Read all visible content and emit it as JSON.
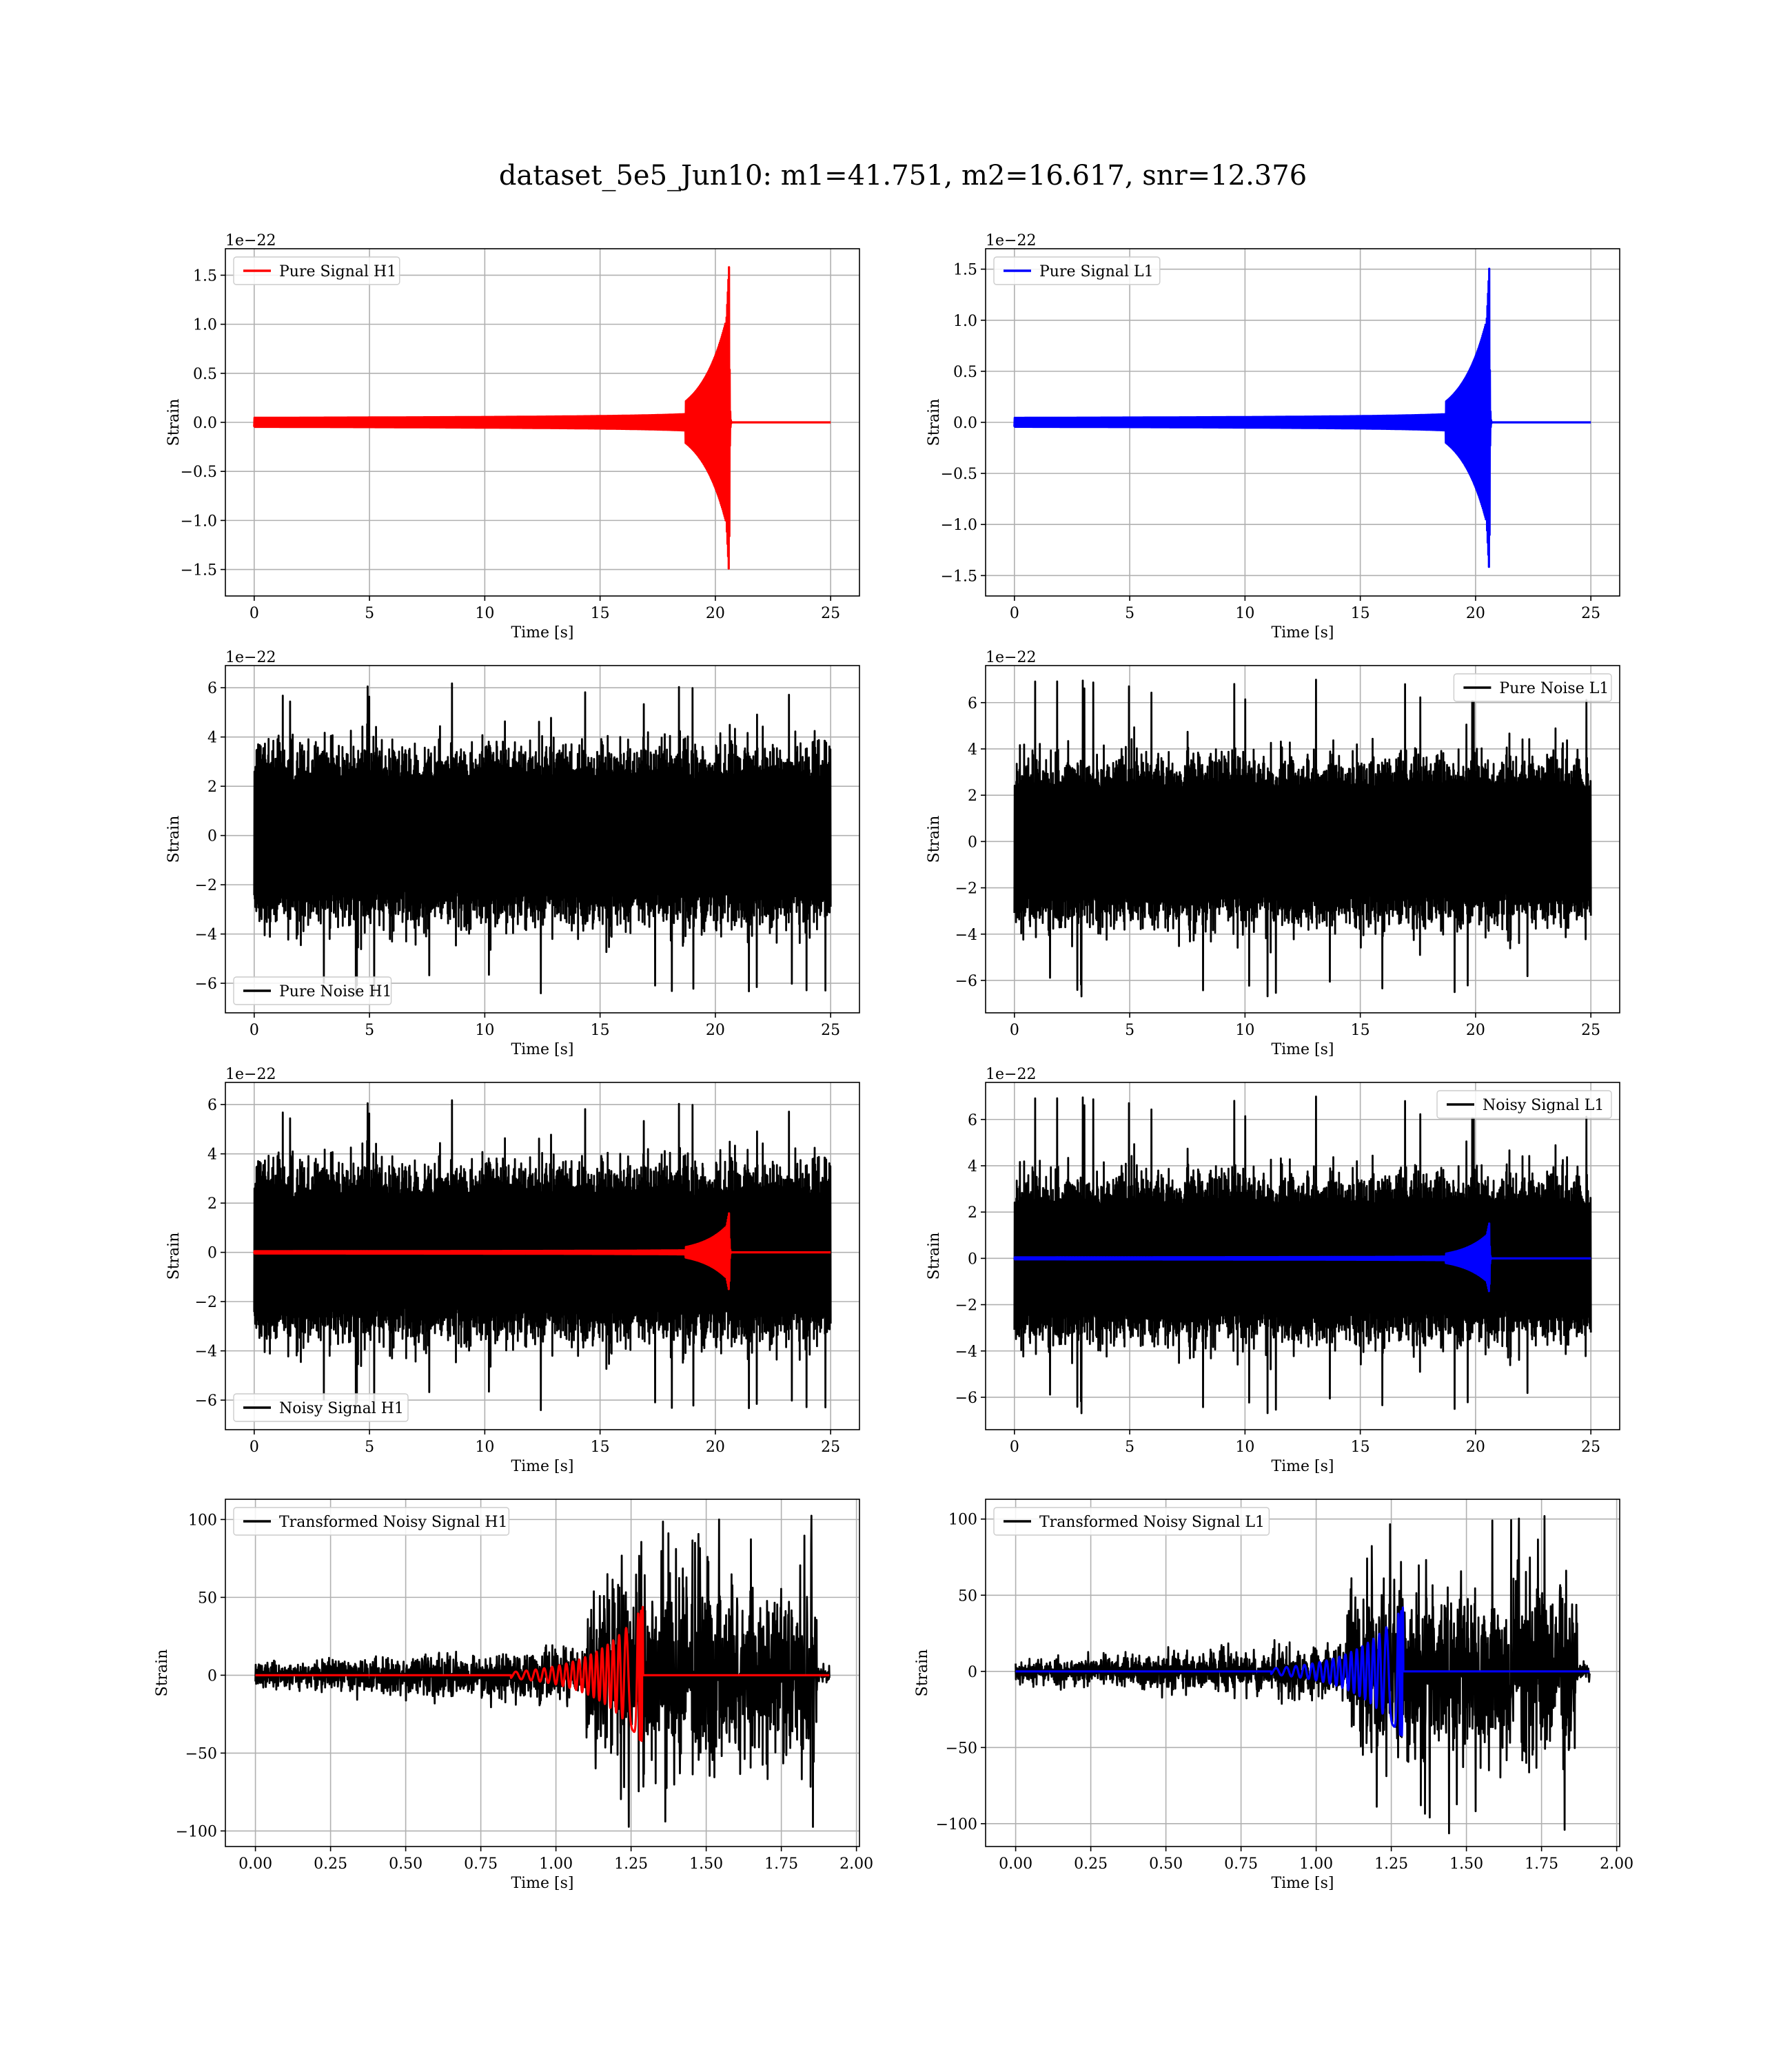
{
  "figure": {
    "title": "dataset_5e5_Jun10: m1=41.751, m2=16.617, snr=12.376"
  },
  "colors": {
    "h1_signal": "#ff0000",
    "l1_signal": "#0000ff",
    "noise": "#000000",
    "grid": "#b0b0b0"
  },
  "chart_data": [
    {
      "type": "line",
      "panel": "top-left",
      "xlabel": "Time [s]",
      "ylabel": "Strain",
      "offset_text": "1e−22",
      "xlim": [
        -1.25,
        26.25
      ],
      "ylim": [
        -1.77,
        1.77
      ],
      "xticks": [
        0,
        5,
        10,
        15,
        20,
        25
      ],
      "yticks": [
        -1.5,
        -1.0,
        -0.5,
        0.0,
        0.5,
        1.0,
        1.5
      ],
      "ytick_labels": [
        "−1.5",
        "−1.0",
        "−0.5",
        "0.0",
        "0.5",
        "1.0",
        "1.5"
      ],
      "legend_loc": "upper-left",
      "grid": true,
      "series": [
        {
          "name": "Pure Signal H1",
          "color": "#ff0000",
          "kind": "chirp",
          "x_start": 0,
          "x_end": 25,
          "merger_t": 20.6,
          "peak_pos": 1.62,
          "peak_neg": -1.59,
          "early_amp": 0.05
        }
      ]
    },
    {
      "type": "line",
      "panel": "top-right",
      "xlabel": "Time [s]",
      "ylabel": "Strain",
      "offset_text": "1e−22",
      "xlim": [
        -1.25,
        26.25
      ],
      "ylim": [
        -1.7,
        1.7
      ],
      "xticks": [
        0,
        5,
        10,
        15,
        20,
        25
      ],
      "yticks": [
        -1.5,
        -1.0,
        -0.5,
        0.0,
        0.5,
        1.0,
        1.5
      ],
      "ytick_labels": [
        "−1.5",
        "−1.0",
        "−0.5",
        "0.0",
        "0.5",
        "1.0",
        "1.5"
      ],
      "legend_loc": "upper-left",
      "grid": true,
      "series": [
        {
          "name": "Pure Signal L1",
          "color": "#0000ff",
          "kind": "chirp",
          "x_start": 0,
          "x_end": 25,
          "merger_t": 20.6,
          "peak_pos": 1.54,
          "peak_neg": -1.51,
          "early_amp": 0.05
        }
      ]
    },
    {
      "type": "line",
      "panel": "second-left",
      "xlabel": "Time [s]",
      "ylabel": "Strain",
      "offset_text": "1e−22",
      "xlim": [
        -1.25,
        26.25
      ],
      "ylim": [
        -7.2,
        6.9
      ],
      "xticks": [
        0,
        5,
        10,
        15,
        20,
        25
      ],
      "yticks": [
        -6,
        -4,
        -2,
        0,
        2,
        4,
        6
      ],
      "ytick_labels": [
        "−6",
        "−4",
        "−2",
        "0",
        "2",
        "4",
        "6"
      ],
      "legend_loc": "lower-left",
      "grid": true,
      "series": [
        {
          "name": "Pure Noise H1",
          "color": "#000000",
          "kind": "noise",
          "x_start": 0,
          "x_end": 25,
          "band": 4.0,
          "spike_max": 6.2,
          "spike_min": -6.6,
          "seed": 11
        }
      ]
    },
    {
      "type": "line",
      "panel": "second-right",
      "xlabel": "Time [s]",
      "ylabel": "Strain",
      "offset_text": "1e−22",
      "xlim": [
        -1.25,
        26.25
      ],
      "ylim": [
        -7.4,
        7.6
      ],
      "xticks": [
        0,
        5,
        10,
        15,
        20,
        25
      ],
      "yticks": [
        -6,
        -4,
        -2,
        0,
        2,
        4,
        6
      ],
      "ytick_labels": [
        "−6",
        "−4",
        "−2",
        "0",
        "2",
        "4",
        "6"
      ],
      "legend_loc": "upper-right",
      "grid": true,
      "series": [
        {
          "name": "Pure Noise L1",
          "color": "#000000",
          "kind": "noise",
          "x_start": 0,
          "x_end": 25,
          "band": 4.0,
          "spike_max": 7.0,
          "spike_min": -6.8,
          "seed": 23
        }
      ]
    },
    {
      "type": "line",
      "panel": "third-left",
      "xlabel": "Time [s]",
      "ylabel": "Strain",
      "offset_text": "1e−22",
      "xlim": [
        -1.25,
        26.25
      ],
      "ylim": [
        -7.2,
        6.9
      ],
      "xticks": [
        0,
        5,
        10,
        15,
        20,
        25
      ],
      "yticks": [
        -6,
        -4,
        -2,
        0,
        2,
        4,
        6
      ],
      "ytick_labels": [
        "−6",
        "−4",
        "−2",
        "0",
        "2",
        "4",
        "6"
      ],
      "legend_loc": "lower-left",
      "grid": true,
      "series": [
        {
          "name": "Noisy Signal H1",
          "color": "#000000",
          "kind": "noise",
          "x_start": 0,
          "x_end": 25,
          "band": 4.0,
          "spike_max": 6.2,
          "spike_min": -6.6,
          "seed": 11
        },
        {
          "name": "",
          "color": "#ff0000",
          "kind": "chirp",
          "x_start": 0,
          "x_end": 25,
          "merger_t": 20.6,
          "peak_pos": 1.62,
          "peak_neg": -1.59,
          "early_amp": 0.05
        }
      ]
    },
    {
      "type": "line",
      "panel": "third-right",
      "xlabel": "Time [s]",
      "ylabel": "Strain",
      "offset_text": "1e−22",
      "xlim": [
        -1.25,
        26.25
      ],
      "ylim": [
        -7.4,
        7.6
      ],
      "xticks": [
        0,
        5,
        10,
        15,
        20,
        25
      ],
      "yticks": [
        -6,
        -4,
        -2,
        0,
        2,
        4,
        6
      ],
      "ytick_labels": [
        "−6",
        "−4",
        "−2",
        "0",
        "2",
        "4",
        "6"
      ],
      "legend_loc": "upper-right",
      "grid": true,
      "series": [
        {
          "name": "Noisy Signal L1",
          "color": "#000000",
          "kind": "noise",
          "x_start": 0,
          "x_end": 25,
          "band": 4.0,
          "spike_max": 7.0,
          "spike_min": -6.8,
          "seed": 23
        },
        {
          "name": "",
          "color": "#0000ff",
          "kind": "chirp",
          "x_start": 0,
          "x_end": 25,
          "merger_t": 20.6,
          "peak_pos": 1.54,
          "peak_neg": -1.51,
          "early_amp": 0.05
        }
      ]
    },
    {
      "type": "line",
      "panel": "bottom-left",
      "xlabel": "Time [s]",
      "ylabel": "Strain",
      "offset_text": "",
      "xlim": [
        -0.1,
        2.01
      ],
      "ylim": [
        -110,
        113
      ],
      "xticks": [
        0.0,
        0.25,
        0.5,
        0.75,
        1.0,
        1.25,
        1.5,
        1.75,
        2.0
      ],
      "xtick_labels": [
        "0.00",
        "0.25",
        "0.50",
        "0.75",
        "1.00",
        "1.25",
        "1.50",
        "1.75",
        "2.00"
      ],
      "yticks": [
        -100,
        -50,
        0,
        50,
        100
      ],
      "ytick_labels": [
        "−100",
        "−50",
        "0",
        "50",
        "100"
      ],
      "legend_loc": "upper-left",
      "grid": true,
      "series": [
        {
          "name": "Transformed Noisy Signal H1",
          "color": "#000000",
          "kind": "whitened",
          "x_start": 0,
          "x_end": 1.91,
          "rise_t": 1.1,
          "cut_t": 1.87,
          "low_amp": 10,
          "high_amp": 45,
          "spike_max": 103,
          "spike_min": -100,
          "seed": 37
        },
        {
          "name": "",
          "color": "#ff0000",
          "kind": "wchirp",
          "x_start": 0,
          "x_end": 1.91,
          "merger_t": 1.29,
          "peak_pos": 45,
          "peak_neg": -45
        }
      ]
    },
    {
      "type": "line",
      "panel": "bottom-right",
      "xlabel": "Time [s]",
      "ylabel": "Strain",
      "offset_text": "",
      "xlim": [
        -0.1,
        2.01
      ],
      "ylim": [
        -115,
        113
      ],
      "xticks": [
        0.0,
        0.25,
        0.5,
        0.75,
        1.0,
        1.25,
        1.5,
        1.75,
        2.0
      ],
      "xtick_labels": [
        "0.00",
        "0.25",
        "0.50",
        "0.75",
        "1.00",
        "1.25",
        "1.50",
        "1.75",
        "2.00"
      ],
      "yticks": [
        -100,
        -50,
        0,
        50,
        100
      ],
      "ytick_labels": [
        "−100",
        "−50",
        "0",
        "50",
        "100"
      ],
      "legend_loc": "upper-left",
      "grid": true,
      "series": [
        {
          "name": "Transformed Noisy Signal L1",
          "color": "#000000",
          "kind": "whitened",
          "x_start": 0,
          "x_end": 1.91,
          "rise_t": 1.1,
          "cut_t": 1.87,
          "low_amp": 10,
          "high_amp": 45,
          "spike_max": 102,
          "spike_min": -108,
          "seed": 53
        },
        {
          "name": "",
          "color": "#0000ff",
          "kind": "wchirp",
          "x_start": 0,
          "x_end": 1.91,
          "merger_t": 1.29,
          "peak_pos": 43,
          "peak_neg": -45
        }
      ]
    }
  ]
}
